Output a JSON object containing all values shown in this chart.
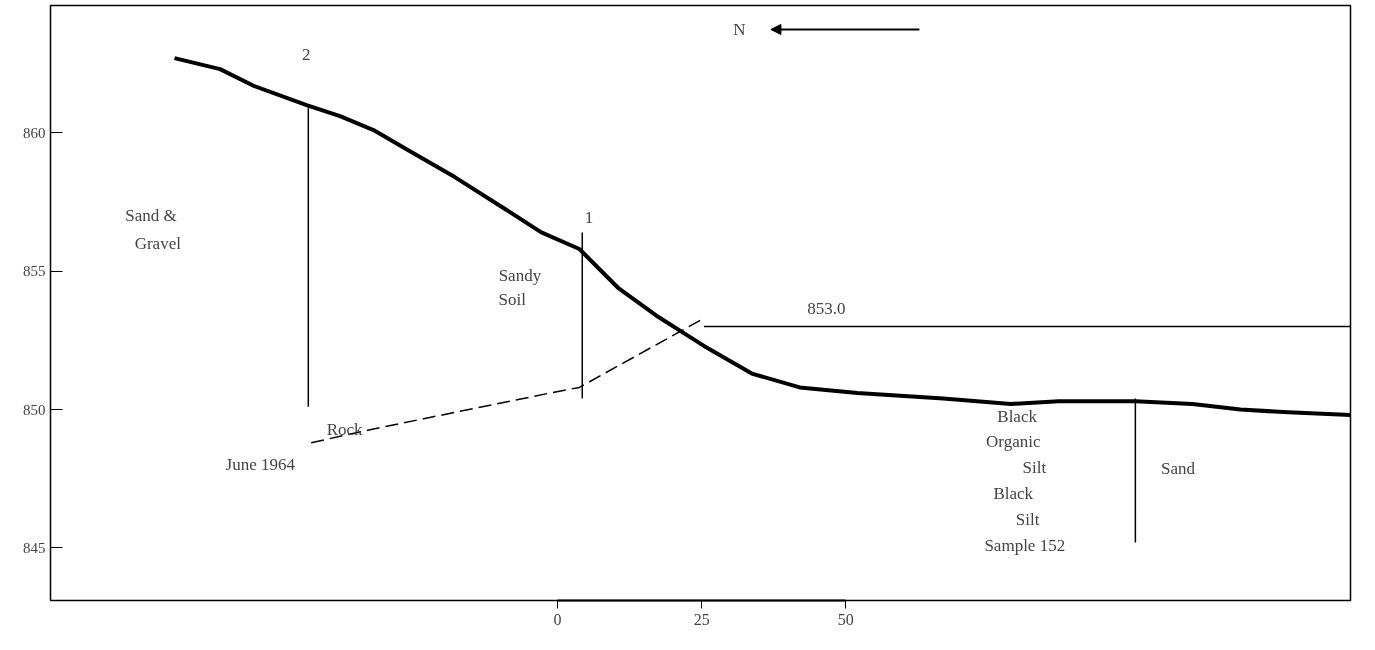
{
  "chart_data": {
    "type": "line",
    "xlim": [
      -87.9,
      137.5
    ],
    "ylim": [
      843.1,
      864.6
    ],
    "xticks": [
      0,
      25,
      50
    ],
    "yticks": [
      845,
      850,
      855,
      860
    ],
    "grid": false,
    "series": [
      {
        "color": "#000000",
        "line_style": "solid",
        "x": [
          -66.4,
          -58.5,
          -52.7,
          -43.5,
          -37.7,
          -31.9,
          -26.1,
          -17.8,
          -9.5,
          -2.8,
          3.8,
          10.5,
          17.1,
          25.4,
          33.7,
          42.0,
          52.0,
          66.9,
          78.6,
          86.9,
          100.2,
          110.1,
          118.4,
          126.7,
          137.5
        ],
        "values": [
          862.7,
          862.3,
          861.7,
          861.0,
          860.6,
          860.1,
          859.4,
          858.4,
          857.3,
          856.4,
          855.8,
          854.4,
          853.4,
          852.3,
          851.3,
          850.8,
          850.6,
          850.4,
          850.2,
          850.3,
          850.3,
          850.2,
          850.0,
          849.9,
          849.8
        ]
      },
      {
        "color": "#000000",
        "line_style": "dashed",
        "x": [
          -42.7,
          -31.9,
          -1.2,
          3.8,
          25.4
        ],
        "values": [
          848.8,
          849.3,
          850.6,
          850.8,
          853.3
        ]
      },
      {
        "color": "#000000",
        "line_style": "solid",
        "x": [
          25.4,
          137.5
        ],
        "values": [
          853.0,
          853.0
        ]
      },
      {
        "color": "#000000",
        "line_style": "solid",
        "x": [
          -43.2,
          -43.2
        ],
        "values": [
          861.0,
          850.1
        ]
      },
      {
        "color": "#000000",
        "line_style": "solid",
        "x": [
          4.3,
          4.3
        ],
        "values": [
          856.4,
          850.4
        ]
      },
      {
        "color": "#000000",
        "line_style": "solid",
        "x": [
          100.2,
          100.2
        ],
        "values": [
          850.4,
          845.2
        ]
      }
    ],
    "annotations": [
      "N",
      "2",
      "1",
      "Sand &",
      "Gravel",
      "Sandy",
      "Soil",
      "Rock",
      "June 1964",
      "853.0",
      "Black",
      "Organic",
      "Silt",
      "Black",
      "Silt",
      "Sample 152",
      "Sand"
    ]
  }
}
